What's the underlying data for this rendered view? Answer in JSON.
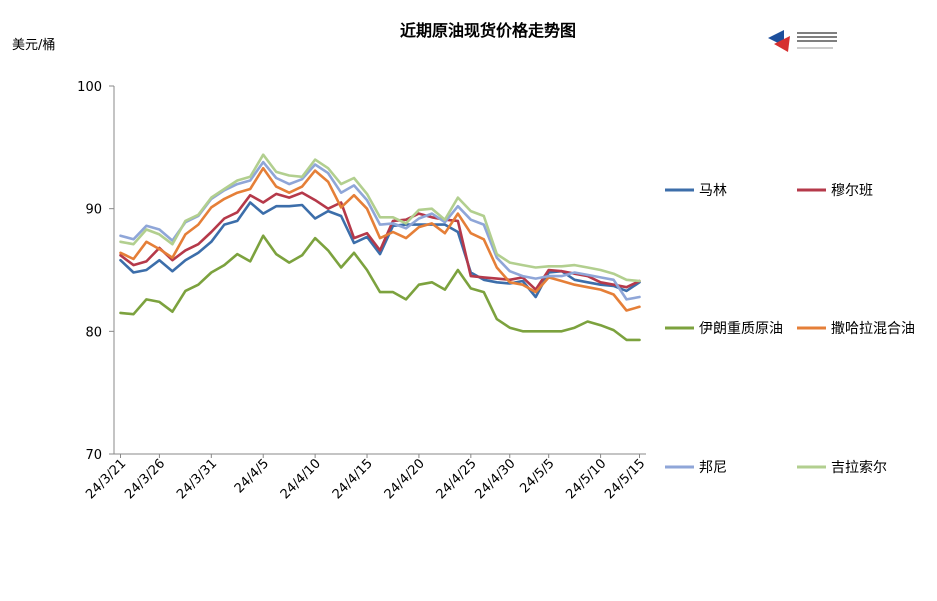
{
  "chart_data": {
    "type": "line",
    "title": "近期原油现货价格走势图",
    "ylabel": "美元/桶",
    "ylim": [
      70,
      100
    ],
    "yticks": [
      "70",
      "80",
      "90",
      "100"
    ],
    "grid": false,
    "x_tick_labels": [
      "24/3/21",
      "24/3/26",
      "24/3/31",
      "24/4/5",
      "24/4/10",
      "24/4/15",
      "24/4/20",
      "24/4/25",
      "24/4/30",
      "24/5/5",
      "24/5/10",
      "24/5/15"
    ],
    "x": [
      "3/21",
      "3/22",
      "3/25",
      "3/26",
      "3/27",
      "3/28",
      "3/29",
      "4/1",
      "4/2",
      "4/3",
      "4/4",
      "4/5",
      "4/8",
      "4/9",
      "4/10",
      "4/11",
      "4/12",
      "4/15",
      "4/16",
      "4/17",
      "4/18",
      "4/19",
      "4/22",
      "4/23",
      "4/24",
      "4/25",
      "4/26",
      "4/29",
      "4/30",
      "5/1",
      "5/2",
      "5/3",
      "5/6",
      "5/7",
      "5/8",
      "5/9",
      "5/10",
      "5/13",
      "5/14",
      "5/15",
      "5/16"
    ],
    "series": [
      {
        "name": "马林",
        "color": "#3c6eaa",
        "values": [
          85.8,
          84.8,
          85.0,
          85.8,
          84.9,
          85.8,
          86.4,
          87.3,
          88.7,
          89.0,
          90.5,
          89.6,
          90.2,
          90.2,
          90.3,
          89.2,
          89.8,
          89.4,
          87.2,
          87.7,
          86.3,
          88.6,
          88.7,
          88.7,
          88.7,
          88.7,
          88.1,
          84.8,
          84.2,
          84.0,
          83.9,
          84.1,
          82.8,
          84.8,
          84.9,
          84.2,
          84.0,
          83.8,
          83.7,
          83.3,
          84.0
        ]
      },
      {
        "name": "穆尔班",
        "color": "#b5394a",
        "values": [
          86.2,
          85.4,
          85.7,
          86.8,
          85.8,
          86.6,
          87.1,
          88.1,
          89.2,
          89.7,
          91.1,
          90.5,
          91.2,
          90.9,
          91.3,
          90.7,
          90.0,
          90.5,
          87.6,
          88.0,
          86.6,
          89.0,
          89.1,
          89.6,
          89.3,
          89.1,
          89.0,
          84.5,
          84.4,
          84.3,
          84.2,
          84.4,
          83.4,
          85.0,
          84.9,
          84.7,
          84.5,
          84.0,
          83.8,
          83.6,
          84.1
        ]
      },
      {
        "name": "伊朗重质原油",
        "color": "#7ca23e",
        "values": [
          81.5,
          81.4,
          82.6,
          82.4,
          81.6,
          83.3,
          83.8,
          84.8,
          85.4,
          86.3,
          85.7,
          87.8,
          86.3,
          85.6,
          86.2,
          87.6,
          86.6,
          85.2,
          86.4,
          85.0,
          83.2,
          83.2,
          82.6,
          83.8,
          84.0,
          83.4,
          85.0,
          83.5,
          83.2,
          81.0,
          80.3,
          80.0,
          80.0,
          80.0,
          80.0,
          80.3,
          80.8,
          80.5,
          80.1,
          79.3,
          79.3
        ]
      },
      {
        "name": "撒哈拉混合油",
        "color": "#e57f38",
        "values": [
          86.4,
          85.9,
          87.3,
          86.7,
          86.0,
          87.9,
          88.7,
          90.1,
          90.8,
          91.3,
          91.6,
          93.3,
          91.8,
          91.3,
          91.8,
          93.1,
          92.2,
          90.1,
          91.1,
          90.0,
          87.6,
          88.1,
          87.6,
          88.5,
          88.8,
          88.0,
          89.6,
          88.0,
          87.5,
          85.2,
          84.0,
          83.8,
          83.2,
          84.4,
          84.1,
          83.8,
          83.6,
          83.4,
          83.0,
          81.7,
          82.0
        ]
      },
      {
        "name": "邦尼",
        "color": "#8fa6d8",
        "values": [
          87.8,
          87.5,
          88.6,
          88.3,
          87.4,
          88.9,
          89.4,
          90.8,
          91.5,
          92.0,
          92.3,
          93.8,
          92.5,
          92.0,
          92.4,
          93.6,
          92.9,
          91.3,
          91.9,
          90.7,
          88.7,
          88.8,
          88.4,
          89.2,
          89.6,
          88.9,
          90.2,
          89.1,
          88.7,
          86.0,
          84.9,
          84.5,
          84.3,
          84.5,
          84.5,
          84.8,
          84.6,
          84.4,
          84.2,
          82.6,
          82.8
        ]
      },
      {
        "name": "吉拉索尔",
        "color": "#b2cf8f",
        "values": [
          87.3,
          87.1,
          88.3,
          87.9,
          87.1,
          89.0,
          89.5,
          90.9,
          91.6,
          92.3,
          92.6,
          94.4,
          93.0,
          92.7,
          92.6,
          94.0,
          93.3,
          92.0,
          92.5,
          91.2,
          89.3,
          89.3,
          88.8,
          89.9,
          90.0,
          89.1,
          90.9,
          89.8,
          89.4,
          86.3,
          85.6,
          85.4,
          85.2,
          85.3,
          85.3,
          85.4,
          85.2,
          85.0,
          84.7,
          84.2,
          84.1
        ]
      }
    ]
  }
}
